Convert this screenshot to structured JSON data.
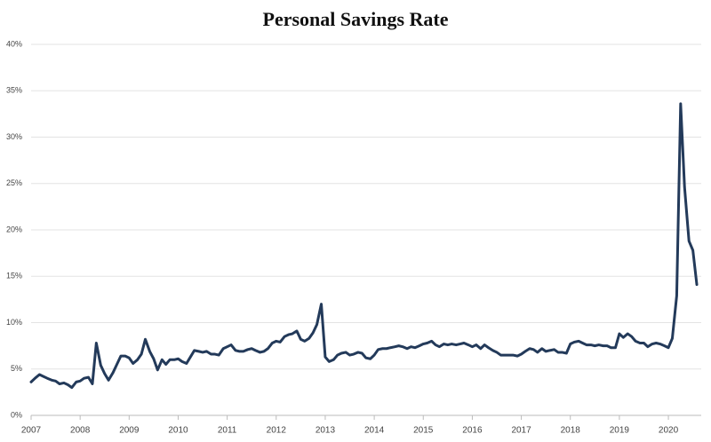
{
  "chart_data": {
    "type": "line",
    "title": "Personal Savings Rate",
    "x": [
      2007,
      2007.08,
      2007.17,
      2007.25,
      2007.33,
      2007.42,
      2007.5,
      2007.58,
      2007.67,
      2007.75,
      2007.83,
      2007.92,
      2008,
      2008.08,
      2008.17,
      2008.25,
      2008.33,
      2008.42,
      2008.5,
      2008.58,
      2008.67,
      2008.75,
      2008.83,
      2008.92,
      2009,
      2009.08,
      2009.17,
      2009.25,
      2009.33,
      2009.42,
      2009.5,
      2009.58,
      2009.67,
      2009.75,
      2009.83,
      2009.92,
      2010,
      2010.08,
      2010.17,
      2010.25,
      2010.33,
      2010.42,
      2010.5,
      2010.58,
      2010.67,
      2010.75,
      2010.83,
      2010.92,
      2011,
      2011.08,
      2011.17,
      2011.25,
      2011.33,
      2011.42,
      2011.5,
      2011.58,
      2011.67,
      2011.75,
      2011.83,
      2011.92,
      2012,
      2012.08,
      2012.17,
      2012.25,
      2012.33,
      2012.42,
      2012.5,
      2012.58,
      2012.67,
      2012.75,
      2012.83,
      2012.92,
      2013,
      2013.08,
      2013.17,
      2013.25,
      2013.33,
      2013.42,
      2013.5,
      2013.58,
      2013.67,
      2013.75,
      2013.83,
      2013.92,
      2014,
      2014.08,
      2014.17,
      2014.25,
      2014.33,
      2014.42,
      2014.5,
      2014.58,
      2014.67,
      2014.75,
      2014.83,
      2014.92,
      2015,
      2015.08,
      2015.17,
      2015.25,
      2015.33,
      2015.42,
      2015.5,
      2015.58,
      2015.67,
      2015.75,
      2015.83,
      2015.92,
      2016,
      2016.08,
      2016.17,
      2016.25,
      2016.33,
      2016.42,
      2016.5,
      2016.58,
      2016.67,
      2016.75,
      2016.83,
      2016.92,
      2017,
      2017.08,
      2017.17,
      2017.25,
      2017.33,
      2017.42,
      2017.5,
      2017.58,
      2017.67,
      2017.75,
      2017.83,
      2017.92,
      2018,
      2018.08,
      2018.17,
      2018.25,
      2018.33,
      2018.42,
      2018.5,
      2018.58,
      2018.67,
      2018.75,
      2018.83,
      2018.92,
      2019,
      2019.08,
      2019.17,
      2019.25,
      2019.33,
      2019.42,
      2019.5,
      2019.58,
      2019.67,
      2019.75,
      2019.83,
      2019.92,
      2020,
      2020.08,
      2020.17,
      2020.25,
      2020.33,
      2020.42,
      2020.5,
      2020.58
    ],
    "series": [
      {
        "name": "Personal Savings Rate",
        "color": "#233a5a",
        "values": [
          3.6,
          4.0,
          4.4,
          4.2,
          4.0,
          3.8,
          3.7,
          3.4,
          3.5,
          3.3,
          3.0,
          3.6,
          3.7,
          4.0,
          4.1,
          3.4,
          7.8,
          5.4,
          4.5,
          3.8,
          4.6,
          5.5,
          6.4,
          6.4,
          6.2,
          5.6,
          6.0,
          6.6,
          8.2,
          6.9,
          6.1,
          4.9,
          6.0,
          5.5,
          6.0,
          6.0,
          6.1,
          5.8,
          5.6,
          6.3,
          7.0,
          6.9,
          6.8,
          6.9,
          6.6,
          6.6,
          6.5,
          7.2,
          7.4,
          7.6,
          7.0,
          6.9,
          6.9,
          7.1,
          7.2,
          7.0,
          6.8,
          6.9,
          7.2,
          7.8,
          8.0,
          7.9,
          8.5,
          8.7,
          8.8,
          9.1,
          8.2,
          8.0,
          8.3,
          8.9,
          9.8,
          12.0,
          6.3,
          5.8,
          6.0,
          6.5,
          6.7,
          6.8,
          6.5,
          6.6,
          6.8,
          6.7,
          6.2,
          6.1,
          6.5,
          7.1,
          7.2,
          7.2,
          7.3,
          7.4,
          7.5,
          7.4,
          7.2,
          7.4,
          7.3,
          7.5,
          7.7,
          7.8,
          8.0,
          7.6,
          7.4,
          7.7,
          7.6,
          7.7,
          7.6,
          7.7,
          7.8,
          7.6,
          7.4,
          7.6,
          7.2,
          7.6,
          7.3,
          7.0,
          6.8,
          6.5,
          6.5,
          6.5,
          6.5,
          6.4,
          6.6,
          6.9,
          7.2,
          7.1,
          6.8,
          7.2,
          6.9,
          7.0,
          7.1,
          6.8,
          6.8,
          6.7,
          7.7,
          7.9,
          8.0,
          7.8,
          7.6,
          7.6,
          7.5,
          7.6,
          7.5,
          7.5,
          7.3,
          7.3,
          8.8,
          8.4,
          8.8,
          8.5,
          8.0,
          7.8,
          7.8,
          7.4,
          7.7,
          7.8,
          7.7,
          7.5,
          7.3,
          8.3,
          12.9,
          33.6,
          24.6,
          18.8,
          17.8,
          14.1
        ]
      }
    ],
    "xlim": [
      2007,
      2020.67
    ],
    "xticks": [
      2007,
      2008,
      2009,
      2010,
      2011,
      2012,
      2013,
      2014,
      2015,
      2016,
      2017,
      2018,
      2019,
      2020
    ],
    "ylim": [
      0,
      40
    ],
    "yticks": [
      {
        "value": 0,
        "label": "0%"
      },
      {
        "value": 5,
        "label": "5%"
      },
      {
        "value": 10,
        "label": "10%"
      },
      {
        "value": 15,
        "label": "15%"
      },
      {
        "value": 20,
        "label": "20%"
      },
      {
        "value": 25,
        "label": "25%"
      },
      {
        "value": 30,
        "label": "30%"
      },
      {
        "value": 35,
        "label": "35%"
      },
      {
        "value": 40,
        "label": "40%"
      }
    ],
    "grid": true
  }
}
